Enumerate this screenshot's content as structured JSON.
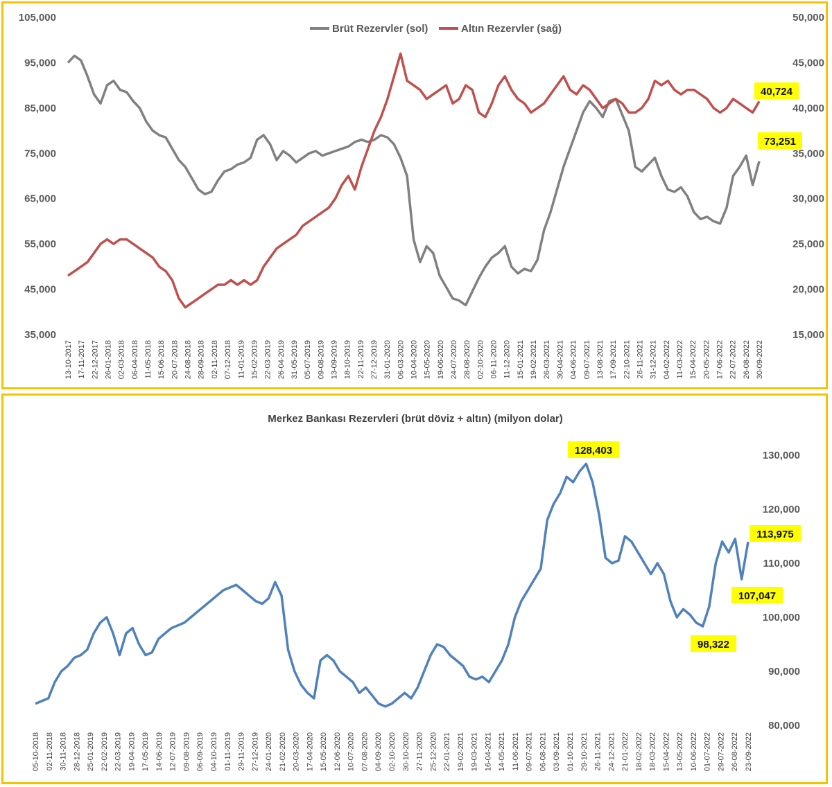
{
  "chart_data": [
    {
      "type": "line",
      "title": "",
      "legend": [
        "Brüt Rezervler (sol)",
        "Altın Rezervler (sağ)"
      ],
      "legend_position": "top-center",
      "colors": {
        "gross": "#808080",
        "gold": "#c0504d"
      },
      "y_left": {
        "range": [
          35000,
          105000
        ],
        "ticks": [
          "35,000",
          "45,000",
          "55,000",
          "65,000",
          "75,000",
          "85,000",
          "95,000",
          "105,000"
        ]
      },
      "y_right": {
        "range": [
          15000,
          50000
        ],
        "ticks": [
          "15,000",
          "20,000",
          "25,000",
          "30,000",
          "35,000",
          "40,000",
          "45,000",
          "50,000"
        ]
      },
      "x_ticks": [
        "13-10-2017",
        "17-11-2017",
        "22-12-2017",
        "26-01-2018",
        "02-03-2018",
        "06-04-2018",
        "11-05-2018",
        "15-06-2018",
        "20-07-2018",
        "24-08-2018",
        "28-09-2018",
        "02-11-2018",
        "07-12-2018",
        "11-01-2019",
        "15-02-2019",
        "22-03-2019",
        "26-04-2019",
        "31-05-2019",
        "05-07-2019",
        "09-08-2019",
        "13-09-2019",
        "18-10-2019",
        "22-11-2019",
        "27-12-2019",
        "31-01-2020",
        "06-03-2020",
        "10-04-2020",
        "15-05-2020",
        "19-06-2020",
        "24-07-2020",
        "28-08-2020",
        "02-10-2020",
        "06-11-2020",
        "11-12-2020",
        "15-01-2021",
        "19-02-2021",
        "26-03-2021",
        "30-04-2021",
        "04-06-2021",
        "09-07-2021",
        "13-08-2021",
        "17-09-2021",
        "22-10-2021",
        "26-11-2021",
        "31-12-2021",
        "04-02-2022",
        "11-03-2022",
        "15-04-2022",
        "20-05-2022",
        "17-06-2022",
        "22-07-2022",
        "26-08-2022",
        "30-09-2022"
      ],
      "series": [
        {
          "name": "Brüt Rezervler (sol)",
          "axis": "left",
          "values": [
            95000,
            96500,
            95500,
            92000,
            88000,
            86000,
            90000,
            91000,
            89000,
            88500,
            86500,
            85000,
            82000,
            80000,
            79000,
            78500,
            76000,
            73500,
            72000,
            69500,
            67000,
            66000,
            66500,
            69000,
            71000,
            71500,
            72500,
            73000,
            74000,
            78000,
            79000,
            77000,
            73500,
            75500,
            74500,
            73000,
            74000,
            75000,
            75500,
            74500,
            75000,
            75500,
            76000,
            76500,
            77500,
            78000,
            77500,
            78000,
            79000,
            78500,
            77000,
            74000,
            70000,
            56000,
            51000,
            54500,
            53000,
            48000,
            45500,
            43000,
            42500,
            41500,
            44500,
            47500,
            50000,
            52000,
            53000,
            54500,
            50000,
            48500,
            49500,
            49000,
            51500,
            58000,
            62000,
            67000,
            72000,
            76000,
            80000,
            84000,
            86500,
            85000,
            83000,
            86500,
            87000,
            83500,
            80000,
            72000,
            71000,
            72500,
            74000,
            70000,
            67000,
            66500,
            67500,
            65500,
            62000,
            60500,
            61000,
            60000,
            59500,
            63000,
            70000,
            72000,
            74500,
            68000,
            73251
          ]
        },
        {
          "name": "Altın Rezervler (sağ)",
          "axis": "right",
          "values": [
            21500,
            22000,
            22500,
            23000,
            24000,
            25000,
            25500,
            25000,
            25500,
            25500,
            25000,
            24500,
            24000,
            23500,
            22500,
            22000,
            21000,
            19000,
            18000,
            18500,
            19000,
            19500,
            20000,
            20500,
            20500,
            21000,
            20500,
            21000,
            20500,
            21000,
            22500,
            23500,
            24500,
            25000,
            25500,
            26000,
            27000,
            27500,
            28000,
            28500,
            29000,
            30000,
            31500,
            32500,
            31000,
            33500,
            35500,
            37500,
            39000,
            41000,
            43500,
            46000,
            43000,
            42500,
            42000,
            41000,
            41500,
            42000,
            42500,
            40500,
            41000,
            42500,
            42000,
            39500,
            39000,
            40500,
            42500,
            43500,
            42000,
            41000,
            40500,
            39500,
            40000,
            40500,
            41500,
            42500,
            43500,
            42000,
            41500,
            42500,
            42000,
            41000,
            40000,
            40500,
            41000,
            40500,
            39500,
            39500,
            40000,
            41000,
            43000,
            42500,
            43000,
            42000,
            41500,
            42000,
            42000,
            41500,
            41000,
            40000,
            39500,
            40000,
            41000,
            40500,
            40000,
            39500,
            40724
          ]
        }
      ],
      "callouts": [
        "40,724",
        "73,251"
      ]
    },
    {
      "type": "line",
      "title": "Merkez Bankası Rezervleri (brüt döviz + altın) (milyon dolar)",
      "colors": {
        "total": "#4f81bd"
      },
      "y_right": {
        "range": [
          80000,
          130000
        ],
        "ticks": [
          "80,000",
          "90,000",
          "100,000",
          "110,000",
          "120,000",
          "130,000"
        ]
      },
      "x_ticks": [
        "05-10-2018",
        "02-11-2018",
        "30-11-2018",
        "28-12-2018",
        "25-01-2019",
        "22-02-2019",
        "22-03-2019",
        "19-04-2019",
        "17-05-2019",
        "14-06-2019",
        "12-07-2019",
        "09-08-2019",
        "06-09-2019",
        "04-10-2019",
        "01-11-2019",
        "29-11-2019",
        "27-12-2019",
        "24-01-2020",
        "21-02-2020",
        "20-03-2020",
        "17-04-2020",
        "15-05-2020",
        "12-06-2020",
        "10-07-2020",
        "07-08-2020",
        "04-09-2020",
        "02-10-2020",
        "30-10-2020",
        "27-11-2020",
        "25-12-2020",
        "22-01-2021",
        "19-02-2021",
        "19-03-2021",
        "16-04-2021",
        "14-05-2021",
        "11-06-2021",
        "09-07-2021",
        "06-08-2021",
        "03-09-2021",
        "01-10-2021",
        "29-10-2021",
        "26-11-2021",
        "24-12-2021",
        "21-01-2022",
        "18-02-2022",
        "18-03-2022",
        "15-04-2022",
        "13-05-2022",
        "10-06-2022",
        "01-07-2022",
        "29-07-2022",
        "26-08-2022",
        "23-09-2022"
      ],
      "series": [
        {
          "name": "",
          "values": [
            84000,
            84500,
            85000,
            88000,
            90000,
            91000,
            92500,
            93000,
            94000,
            97000,
            99000,
            100000,
            97000,
            93000,
            97000,
            98000,
            95000,
            93000,
            93500,
            96000,
            97000,
            98000,
            98500,
            99000,
            100000,
            101000,
            102000,
            103000,
            104000,
            105000,
            105500,
            106000,
            105000,
            104000,
            103000,
            102500,
            103500,
            106500,
            104000,
            94000,
            90000,
            87500,
            86000,
            85000,
            92000,
            93000,
            92000,
            90000,
            89000,
            88000,
            86000,
            87000,
            85500,
            84000,
            83500,
            84000,
            85000,
            86000,
            85000,
            87000,
            90000,
            93000,
            95000,
            94500,
            93000,
            92000,
            91000,
            89000,
            88500,
            89000,
            88000,
            90000,
            92000,
            95000,
            100000,
            103000,
            105000,
            107000,
            109000,
            118000,
            121000,
            123000,
            126000,
            125000,
            127000,
            128403,
            125000,
            119000,
            111000,
            110000,
            110500,
            115000,
            114000,
            112000,
            110000,
            108000,
            110000,
            108000,
            103000,
            100000,
            101500,
            100500,
            99000,
            98322,
            102000,
            110000,
            114000,
            112000,
            114500,
            107047,
            113975
          ]
        }
      ],
      "callouts": [
        "128,403",
        "113,975",
        "107,047",
        "98,322"
      ]
    }
  ]
}
